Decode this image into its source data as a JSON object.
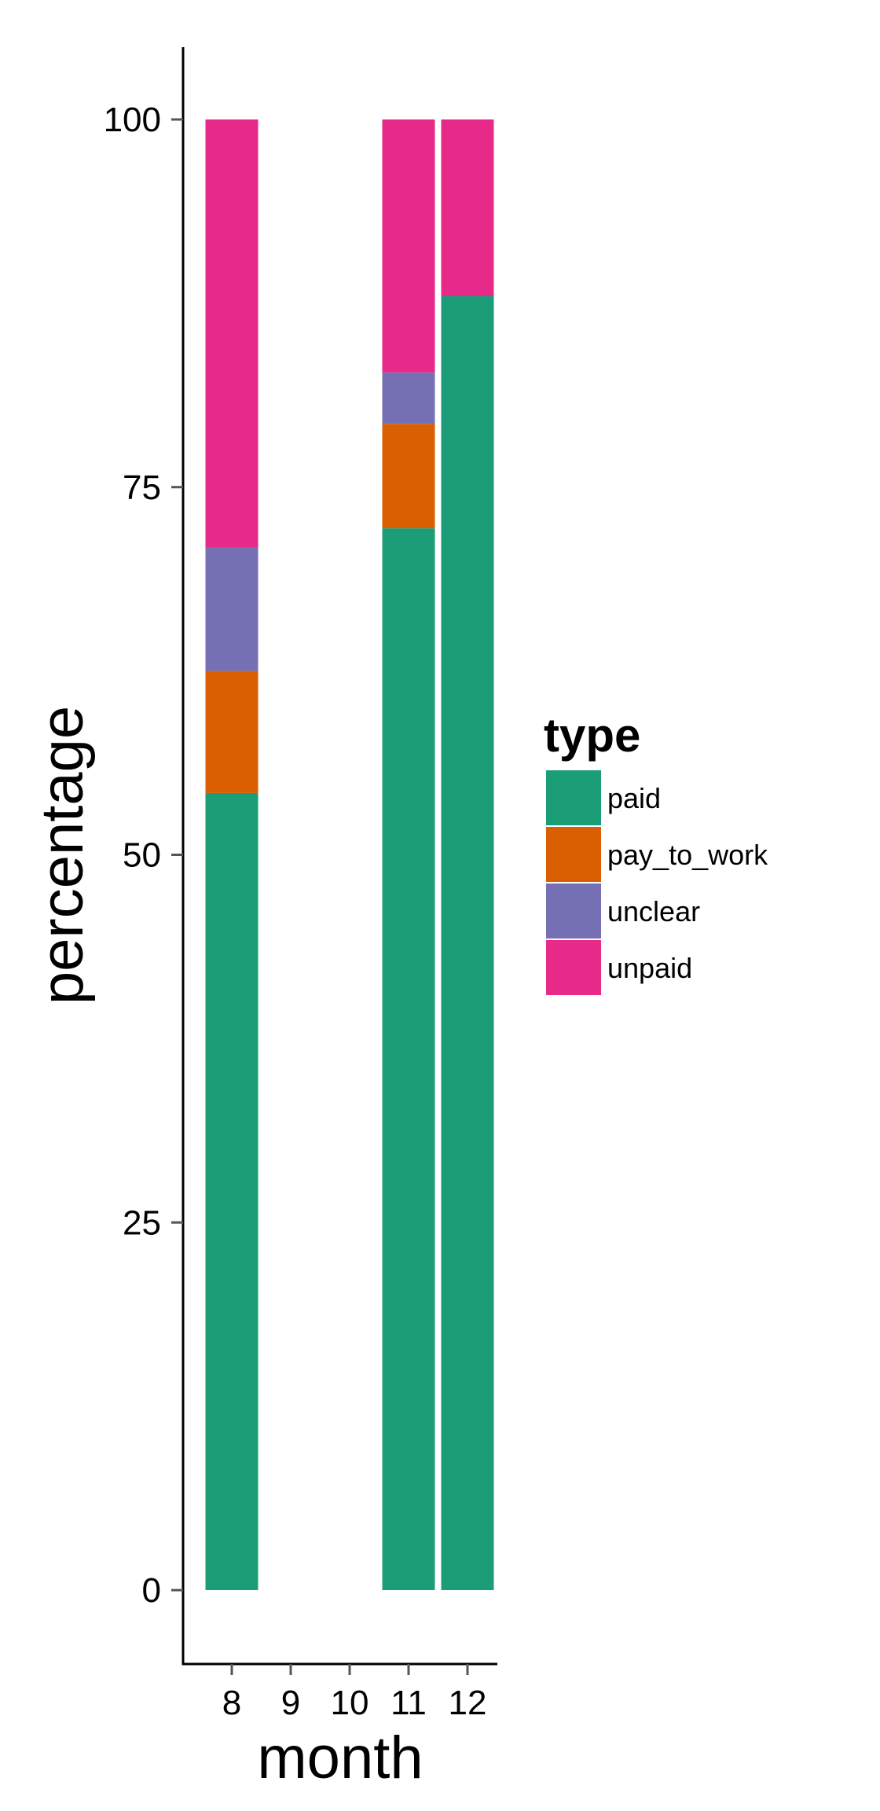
{
  "chart_data": {
    "type": "bar",
    "stacked": true,
    "title": "",
    "xlabel": "month",
    "ylabel": "percentage",
    "x_ticks": [
      "8",
      "9",
      "10",
      "11",
      "12"
    ],
    "y_ticks": [
      "0",
      "25",
      "50",
      "75",
      "100"
    ],
    "ylim": [
      -4.5,
      105
    ],
    "grid": false,
    "legend": {
      "title": "type",
      "position": "right"
    },
    "categories": [
      "8",
      "11",
      "12"
    ],
    "series": [
      {
        "name": "paid",
        "color": "#1b9e77",
        "values": [
          54.2,
          72.2,
          88.0
        ]
      },
      {
        "name": "pay_to_work",
        "color": "#d95f02",
        "values": [
          8.3,
          7.1,
          0
        ]
      },
      {
        "name": "unclear",
        "color": "#7570b3",
        "values": [
          8.4,
          3.5,
          0
        ]
      },
      {
        "name": "unpaid",
        "color": "#e7298a",
        "values": [
          29.1,
          17.2,
          12.0
        ]
      }
    ]
  }
}
